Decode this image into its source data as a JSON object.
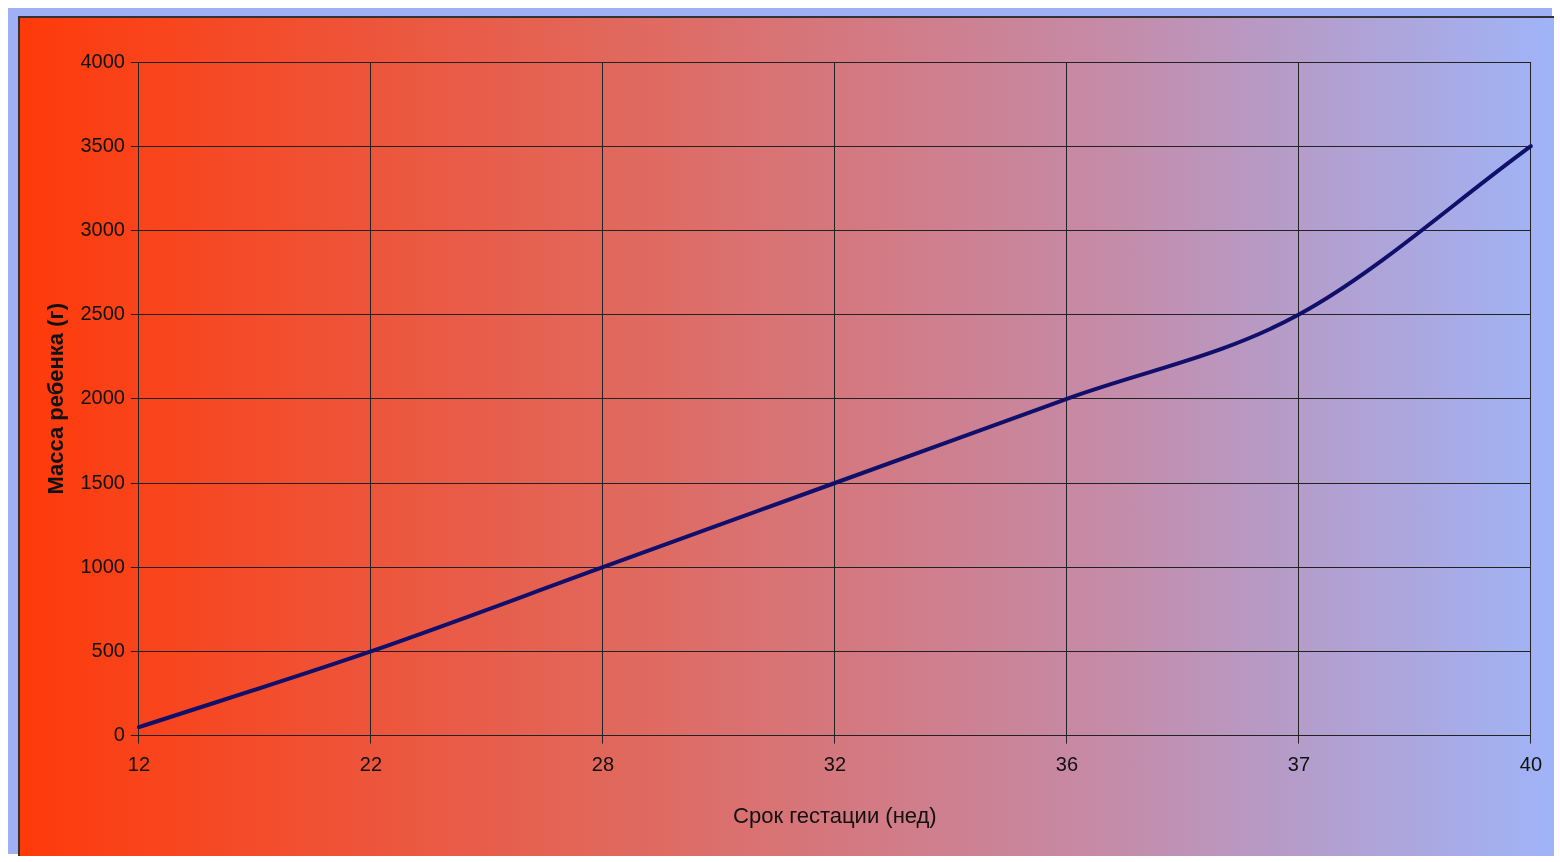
{
  "chart_data": {
    "type": "line",
    "xlabel": "Срок гестации (нед)",
    "ylabel": "Масса ребенка (г)",
    "categories": [
      "12",
      "22",
      "28",
      "32",
      "36",
      "37",
      "40"
    ],
    "series": [
      {
        "color": "#10106a",
        "values": [
          50,
          500,
          1000,
          1500,
          2000,
          2500,
          3500
        ]
      }
    ],
    "ylim": [
      0,
      4000
    ],
    "yticks": [
      0,
      500,
      1000,
      1500,
      2000,
      2500,
      3000,
      3500,
      4000
    ],
    "grid": true,
    "legend": false,
    "marker": "none",
    "line_style": "solid"
  }
}
